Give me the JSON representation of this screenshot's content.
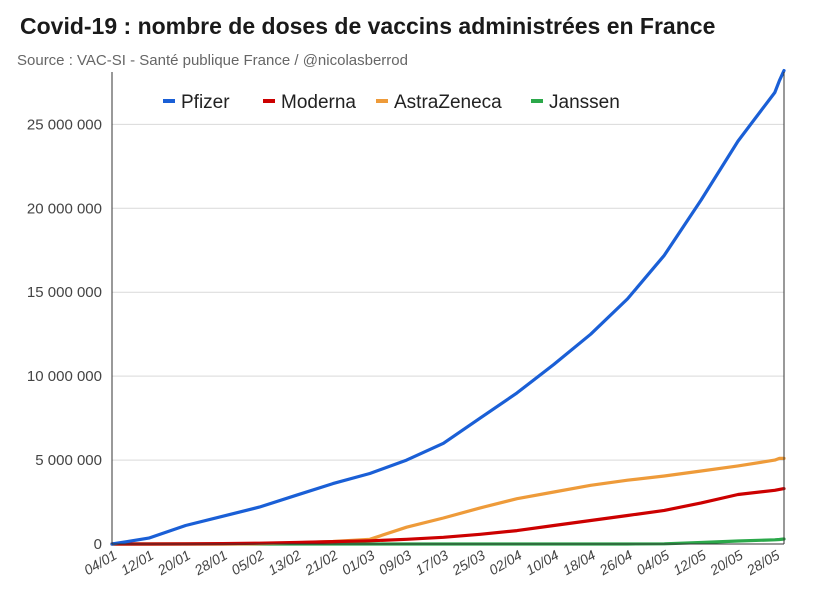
{
  "chart_data": {
    "type": "line",
    "title": "Covid-19 : nombre de doses de vaccins administrées en France",
    "subtitle": "Source : VAC-SI - Santé publique France / @nicolasberrod",
    "xlabel": "",
    "ylabel": "",
    "ylim": [
      0,
      28000000
    ],
    "yticks": [
      0,
      5000000,
      10000000,
      15000000,
      20000000,
      25000000
    ],
    "ytick_labels": [
      "0",
      "5 000 000",
      "10 000 000",
      "15 000 000",
      "20 000 000",
      "25 000 000"
    ],
    "xtick_labels": [
      "04/01",
      "12/01",
      "20/01",
      "28/01",
      "05/02",
      "13/02",
      "21/02",
      "01/03",
      "09/03",
      "17/03",
      "25/03",
      "02/04",
      "10/04",
      "18/04",
      "26/04",
      "04/05",
      "12/05",
      "20/05",
      "28/05"
    ],
    "x_days": [
      0,
      8,
      16,
      24,
      32,
      40,
      48,
      56,
      64,
      72,
      80,
      88,
      96,
      104,
      112,
      120,
      128,
      136,
      144,
      145,
      146
    ],
    "legend_position": "top",
    "series": [
      {
        "name": "Pfizer",
        "color": "#1a5fd6",
        "values": [
          0,
          350000,
          1100000,
          1650000,
          2200000,
          2900000,
          3600000,
          4200000,
          5000000,
          6000000,
          7500000,
          9000000,
          10700000,
          12500000,
          14600000,
          17200000,
          20500000,
          24000000,
          26900000,
          27600000,
          28200000
        ]
      },
      {
        "name": "Moderna",
        "color": "#cc0000",
        "values": [
          0,
          0,
          5000,
          25000,
          50000,
          90000,
          140000,
          190000,
          280000,
          400000,
          580000,
          800000,
          1100000,
          1400000,
          1700000,
          2000000,
          2450000,
          2950000,
          3200000,
          3250000,
          3300000
        ]
      },
      {
        "name": "AstraZeneca",
        "color": "#ee9b3a",
        "values": [
          0,
          0,
          0,
          0,
          20000,
          70000,
          150000,
          280000,
          1000000,
          1550000,
          2150000,
          2700000,
          3100000,
          3500000,
          3800000,
          4050000,
          4350000,
          4650000,
          5000000,
          5100000,
          5100000
        ]
      },
      {
        "name": "Janssen",
        "color": "#2ba84a",
        "values": [
          0,
          0,
          0,
          0,
          0,
          0,
          0,
          0,
          0,
          0,
          0,
          0,
          0,
          0,
          0,
          10000,
          90000,
          180000,
          250000,
          270000,
          300000
        ]
      }
    ]
  }
}
